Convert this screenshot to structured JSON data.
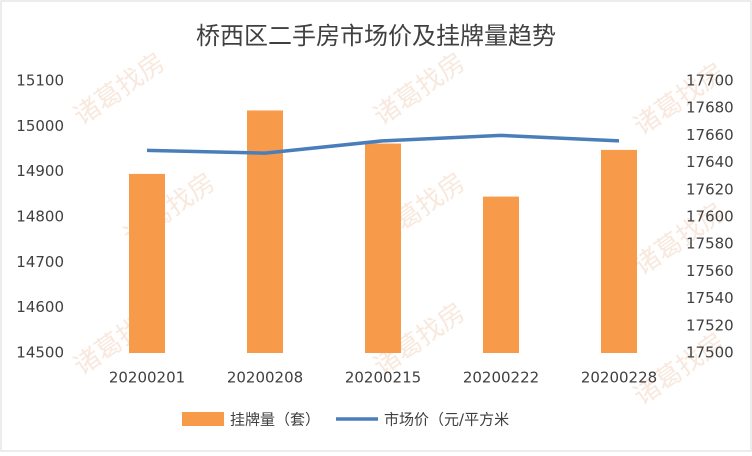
{
  "chart_data": {
    "type": "bar",
    "title": "桥西区二手房市场价及挂牌量趋势",
    "watermark": "诸葛找房",
    "categories": [
      "20200201",
      "20200208",
      "20200215",
      "20200222",
      "20200228"
    ],
    "series": [
      {
        "name": "挂牌量（套）",
        "type": "bar",
        "color": "#f79a4a",
        "values": [
          14895,
          15035,
          14962,
          14845,
          14948
        ]
      },
      {
        "name": "市场价（元/平方米",
        "type": "line",
        "axis": "y2",
        "color": "#4a7ebb",
        "values": [
          17649,
          17647,
          17656,
          17660,
          17656
        ]
      }
    ],
    "ylim": [
      14500,
      15100
    ],
    "yticks": [
      14500,
      14600,
      14700,
      14800,
      14900,
      15000,
      15100
    ],
    "y2lim": [
      17500,
      17700
    ],
    "y2ticks": [
      17500,
      17520,
      17540,
      17560,
      17580,
      17600,
      17620,
      17640,
      17660,
      17680,
      17700
    ],
    "legend": "bottom"
  }
}
